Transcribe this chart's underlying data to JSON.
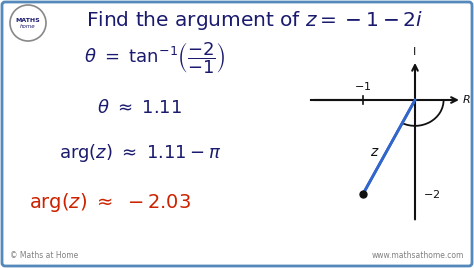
{
  "bg_color": "#ffffff",
  "border_color": "#5588bb",
  "title_color": "#1a1a6e",
  "eq_color": "#1a1a6e",
  "eq4_color": "#cc2200",
  "axis_color": "#111111",
  "line_color": "#3366cc",
  "watermark": "www.mathsathome.com",
  "copyright": "© Maths at Home",
  "logo_text": "MATHS\nhome"
}
